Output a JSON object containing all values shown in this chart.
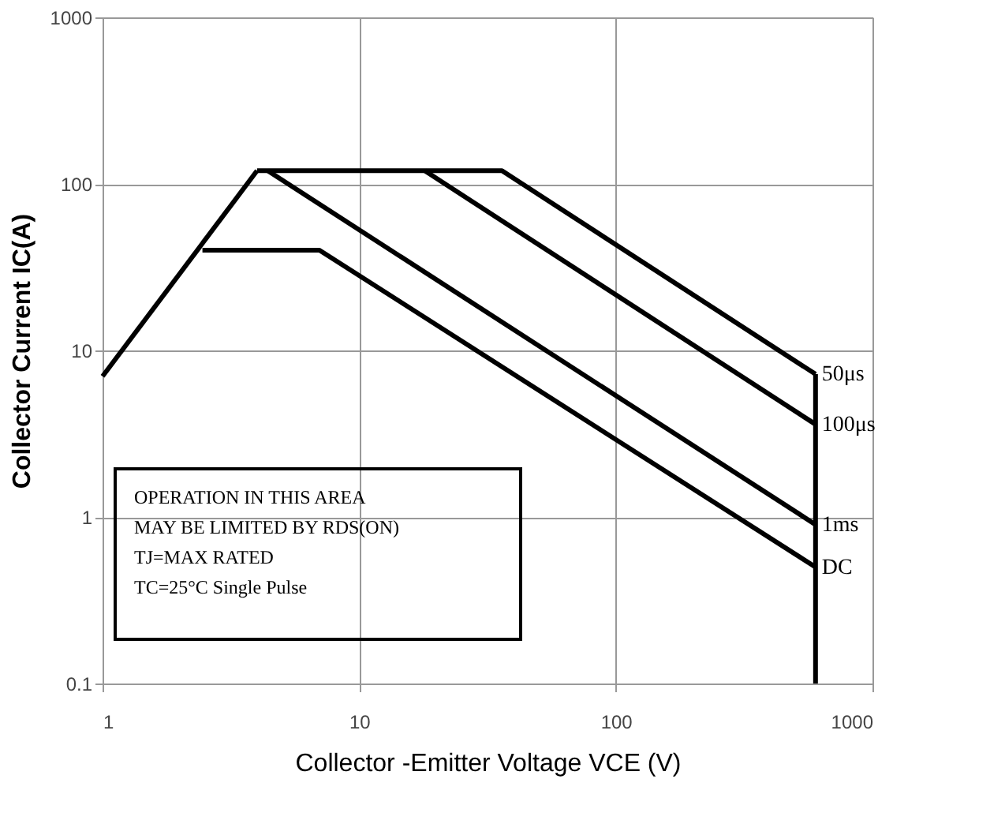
{
  "chart_data": {
    "type": "line",
    "xlabel": "Collector -Emitter Voltage VCE (V)",
    "ylabel": "Collector Current   IC(A)",
    "log": "xy",
    "xlim": [
      1,
      1000
    ],
    "ylim": [
      0.1,
      1000
    ],
    "xticks": [
      1,
      10,
      100,
      1000
    ],
    "yticks": [
      0.1,
      1,
      10,
      100,
      1000
    ],
    "grid": true,
    "marker": "none",
    "line_style": "solid",
    "series": [
      {
        "color": "#000000",
        "x": [
          1,
          4
        ],
        "values": [
          7,
          120
        ]
      },
      {
        "name": "50μs",
        "color": "#000000",
        "x": [
          4,
          36,
          600
        ],
        "values": [
          120,
          120,
          7.2
        ]
      },
      {
        "name": "100μs",
        "color": "#000000",
        "x": [
          18,
          600
        ],
        "values": [
          120,
          3.6
        ]
      },
      {
        "name": "1ms",
        "color": "#000000",
        "x": [
          4.4,
          600
        ],
        "values": [
          120,
          0.9
        ]
      },
      {
        "name": "DC",
        "color": "#000000",
        "x": [
          2.45,
          7,
          600
        ],
        "values": [
          40,
          40,
          0.5
        ]
      },
      {
        "color": "#000000",
        "x": [
          600,
          600
        ],
        "values": [
          7.2,
          0.1
        ]
      }
    ],
    "annotations": [
      "OPERATION IN THIS AREA",
      "MAY BE LIMITED BY RDS(ON)",
      "TJ=MAX RATED",
      "TC=25°C  Single Pulse"
    ]
  }
}
